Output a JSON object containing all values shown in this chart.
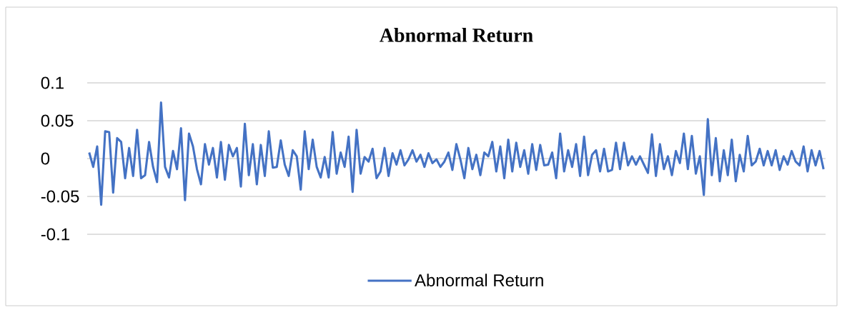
{
  "chart_data": {
    "type": "line",
    "title": "Abnormal Return",
    "categories": [
      null,
      null,
      null,
      null,
      null,
      null,
      null,
      null,
      null,
      null,
      null,
      null,
      null,
      null,
      null,
      null,
      null,
      null,
      null,
      null,
      null,
      null,
      null,
      null,
      null,
      null,
      null,
      null,
      null,
      null,
      null,
      null,
      null,
      null,
      null,
      null,
      null,
      null,
      null,
      null,
      null,
      null,
      null,
      null,
      null,
      null,
      null,
      null,
      null,
      null,
      null,
      null,
      null,
      null,
      null,
      null,
      null,
      null,
      null,
      null,
      null,
      null,
      null,
      null,
      null,
      null,
      null,
      null,
      null,
      null,
      null,
      null,
      null,
      null,
      null,
      null,
      null,
      null,
      null,
      null,
      null,
      null,
      null,
      null,
      null,
      null,
      null,
      null,
      null,
      null,
      null,
      null,
      null,
      null,
      null,
      null,
      null,
      null,
      null,
      null,
      null,
      null,
      null,
      null,
      null,
      null,
      null,
      null,
      null,
      null,
      null,
      null,
      null,
      null,
      null,
      null,
      null,
      null,
      null,
      null,
      null,
      null,
      null,
      null,
      null,
      null,
      null,
      null,
      null,
      null,
      null,
      null,
      null,
      null,
      null,
      null,
      null,
      null,
      null,
      null,
      null,
      null,
      null,
      null,
      null,
      null,
      null,
      null,
      null,
      null,
      null,
      null,
      null,
      null,
      null,
      null,
      null,
      null,
      null,
      null,
      null,
      null,
      null,
      null,
      null,
      null,
      null,
      null,
      null,
      null,
      null,
      null,
      null,
      null,
      null,
      null,
      null,
      null,
      null,
      null,
      null,
      null,
      null,
      null,
      null
    ],
    "series": [
      {
        "name": "Abnormal Return",
        "color": "#4472c4",
        "values": [
          0.008,
          -0.011,
          0.016,
          -0.061,
          0.036,
          0.035,
          -0.045,
          0.027,
          0.022,
          -0.026,
          0.014,
          -0.023,
          0.038,
          -0.026,
          -0.022,
          0.022,
          -0.011,
          -0.031,
          0.074,
          -0.011,
          -0.025,
          0.01,
          -0.014,
          0.04,
          -0.055,
          0.033,
          0.016,
          -0.014,
          -0.034,
          0.019,
          -0.008,
          0.014,
          -0.025,
          0.022,
          -0.028,
          0.018,
          0.003,
          0.014,
          -0.037,
          0.046,
          -0.022,
          0.019,
          -0.034,
          0.018,
          -0.023,
          0.036,
          -0.012,
          -0.011,
          0.024,
          -0.008,
          -0.023,
          0.011,
          0.003,
          -0.041,
          0.036,
          -0.014,
          0.025,
          -0.011,
          -0.025,
          0.002,
          -0.025,
          0.035,
          -0.02,
          0.008,
          -0.011,
          0.029,
          -0.044,
          0.038,
          -0.02,
          0.002,
          -0.004,
          0.013,
          -0.026,
          -0.017,
          0.014,
          -0.023,
          0.007,
          -0.008,
          0.011,
          -0.009,
          -0.001,
          0.011,
          -0.004,
          0.005,
          -0.011,
          0.007,
          -0.006,
          -0.001,
          -0.011,
          -0.004,
          0.008,
          -0.015,
          0.019,
          -0.001,
          -0.026,
          0.014,
          -0.014,
          0.005,
          -0.022,
          0.008,
          0.003,
          0.022,
          -0.017,
          0.016,
          -0.026,
          0.025,
          -0.017,
          0.021,
          -0.011,
          0.011,
          -0.02,
          0.019,
          -0.015,
          0.018,
          -0.009,
          -0.008,
          0.008,
          -0.026,
          0.033,
          -0.017,
          0.011,
          -0.011,
          0.019,
          -0.023,
          0.029,
          -0.022,
          0.005,
          0.011,
          -0.017,
          0.013,
          -0.017,
          -0.015,
          0.021,
          -0.014,
          0.021,
          -0.009,
          0.003,
          -0.008,
          0.003,
          -0.008,
          -0.019,
          0.032,
          -0.023,
          0.019,
          -0.014,
          0.003,
          -0.022,
          0.01,
          -0.006,
          0.033,
          -0.014,
          0.03,
          -0.02,
          0.003,
          -0.048,
          0.052,
          -0.022,
          0.027,
          -0.03,
          0.011,
          -0.022,
          0.025,
          -0.03,
          0.005,
          -0.017,
          0.03,
          -0.009,
          -0.004,
          0.013,
          -0.009,
          0.01,
          -0.009,
          0.011,
          -0.015,
          0.003,
          -0.008,
          0.01,
          -0.004,
          -0.009,
          0.016,
          -0.017,
          0.011,
          -0.009,
          0.01,
          -0.014
        ]
      }
    ],
    "ylim": [
      -0.1,
      0.1
    ],
    "yticks": [
      -0.1,
      -0.05,
      0,
      0.05,
      0.1
    ],
    "grid": "y",
    "legend": "bottom",
    "tick_labels": "y"
  }
}
